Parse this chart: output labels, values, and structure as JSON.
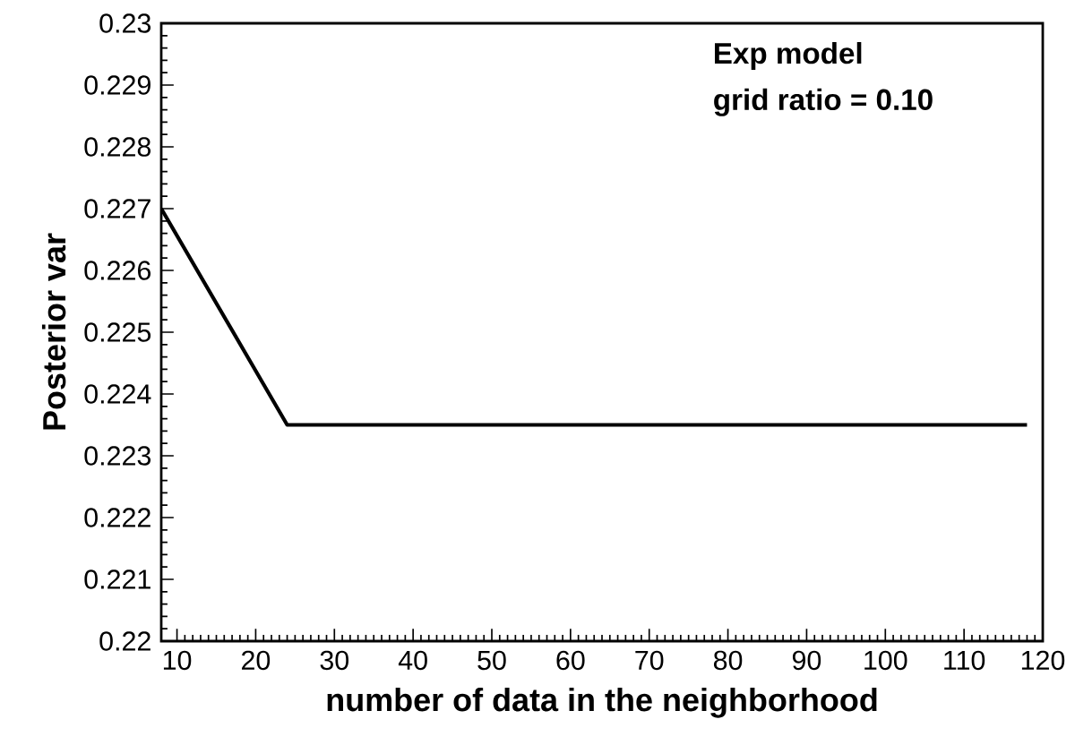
{
  "chart_data": {
    "type": "line",
    "xlabel": "number of data in the neighborhood",
    "ylabel": "Posterior var",
    "annotations": [
      "Exp model",
      "grid ratio = 0.10"
    ],
    "x": [
      8,
      24,
      118
    ],
    "series": [
      {
        "color": "#000000",
        "values": [
          0.227,
          0.2235,
          0.2235
        ]
      }
    ],
    "xlim": [
      8,
      120
    ],
    "ylim": [
      0.22,
      0.23
    ],
    "xticks": [
      10,
      20,
      30,
      40,
      50,
      60,
      70,
      80,
      90,
      100,
      110,
      120
    ],
    "yticks": [
      0.22,
      0.221,
      0.222,
      0.223,
      0.224,
      0.225,
      0.226,
      0.227,
      0.228,
      0.229,
      0.23
    ],
    "marker": "none",
    "line_style": "solid"
  }
}
